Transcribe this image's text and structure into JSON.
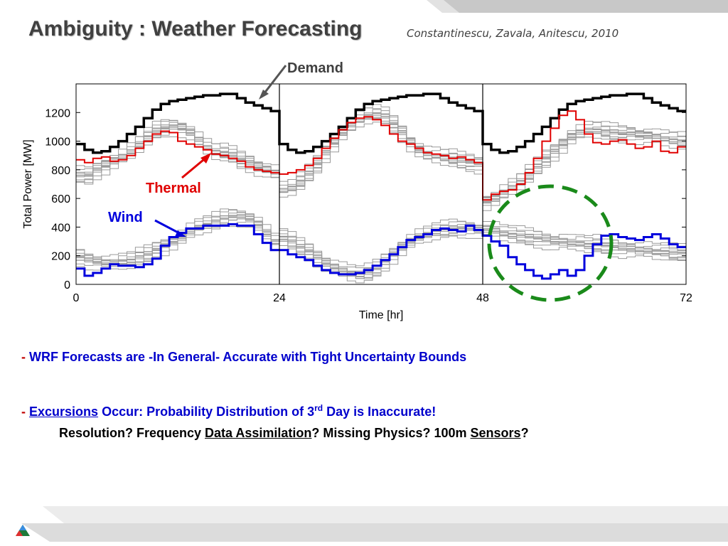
{
  "slide": {
    "title": "Ambiguity : Weather Forecasting",
    "citation": "Constantinescu, Zavala, Anitescu, 2010",
    "bullet1": {
      "dash": "-",
      "text": "WRF Forecasts are -In General- Accurate with Tight Uncertainty Bounds"
    },
    "bullet2": {
      "dash": "-",
      "link": "Excursions",
      "text_before_sup": "Occur: Probability Distribution of 3",
      "sup": "rd",
      "text_after_sup": "Day is Inaccurate!"
    },
    "bullet3": {
      "part1": "Resolution? Frequency",
      "link1": "Data Assimilation",
      "part2": "? Missing Physics? 100m",
      "link2": "Sensors",
      "part3": "?"
    }
  },
  "colors": {
    "demand": "#000000",
    "thermal": "#e00000",
    "wind": "#0000dd",
    "scenarios": "#9a9a9a",
    "circle": "#1a8a1a",
    "title": "#404040",
    "bullet": "#0000cc"
  },
  "chart_data": {
    "type": "line",
    "xlabel": "Time [hr]",
    "ylabel": "Total Power [MW]",
    "xlim": [
      0,
      72
    ],
    "ylim": [
      0,
      1400
    ],
    "xticks": [
      0,
      24,
      48,
      72
    ],
    "yticks": [
      0,
      200,
      400,
      600,
      800,
      1000,
      1200
    ],
    "annotations": [
      "Demand",
      "Thermal",
      "Wind"
    ],
    "day_separators": [
      24,
      48
    ],
    "series": [
      {
        "name": "Demand",
        "x": [
          0,
          1,
          2,
          3,
          4,
          5,
          6,
          7,
          8,
          9,
          10,
          11,
          12,
          13,
          14,
          15,
          16,
          17,
          18,
          19,
          20,
          21,
          22,
          23
        ],
        "values": [
          980,
          940,
          920,
          930,
          960,
          1000,
          1050,
          1100,
          1160,
          1220,
          1260,
          1280,
          1290,
          1300,
          1310,
          1320,
          1320,
          1330,
          1330,
          1300,
          1270,
          1250,
          1230,
          1210
        ],
        "repeat_days": 3
      },
      {
        "name": "Thermal",
        "x": [
          0,
          1,
          2,
          3,
          4,
          5,
          6,
          7,
          8,
          9,
          10,
          11,
          12,
          13,
          14,
          15,
          16,
          17,
          18,
          19,
          20,
          21,
          22,
          23,
          24,
          25,
          26,
          27,
          28,
          29,
          30,
          31,
          32,
          33,
          34,
          35,
          36,
          37,
          38,
          39,
          40,
          41,
          42,
          43,
          44,
          45,
          46,
          47,
          48,
          49,
          50,
          51,
          52,
          53,
          54,
          55,
          56,
          57,
          58,
          59,
          60,
          61,
          62,
          63,
          64,
          65,
          66,
          67,
          68,
          69,
          70,
          71
        ],
        "values": [
          870,
          850,
          880,
          890,
          860,
          870,
          900,
          950,
          1000,
          1050,
          1070,
          1060,
          1000,
          980,
          960,
          940,
          910,
          900,
          880,
          860,
          820,
          800,
          790,
          780,
          770,
          780,
          800,
          830,
          880,
          950,
          1020,
          1080,
          1130,
          1160,
          1170,
          1150,
          1110,
          1050,
          1000,
          980,
          950,
          920,
          910,
          900,
          880,
          890,
          870,
          850,
          590,
          630,
          650,
          660,
          700,
          780,
          880,
          1000,
          1090,
          1180,
          1210,
          1150,
          1050,
          990,
          980,
          1000,
          1010,
          980,
          950,
          960,
          1000,
          930,
          920,
          960
        ]
      },
      {
        "name": "Wind",
        "x": [
          0,
          1,
          2,
          3,
          4,
          5,
          6,
          7,
          8,
          9,
          10,
          11,
          12,
          13,
          14,
          15,
          16,
          17,
          18,
          19,
          20,
          21,
          22,
          23,
          24,
          25,
          26,
          27,
          28,
          29,
          30,
          31,
          32,
          33,
          34,
          35,
          36,
          37,
          38,
          39,
          40,
          41,
          42,
          43,
          44,
          45,
          46,
          47,
          48,
          49,
          50,
          51,
          52,
          53,
          54,
          55,
          56,
          57,
          58,
          59,
          60,
          61,
          62,
          63,
          64,
          65,
          66,
          67,
          68,
          69,
          70,
          71
        ],
        "values": [
          110,
          60,
          80,
          110,
          140,
          130,
          130,
          120,
          140,
          180,
          270,
          330,
          360,
          390,
          390,
          410,
          410,
          410,
          420,
          410,
          410,
          350,
          290,
          240,
          240,
          210,
          190,
          170,
          130,
          100,
          80,
          70,
          70,
          80,
          100,
          130,
          170,
          210,
          260,
          310,
          330,
          350,
          380,
          390,
          380,
          370,
          410,
          380,
          340,
          300,
          270,
          190,
          140,
          100,
          60,
          40,
          70,
          100,
          60,
          100,
          200,
          280,
          340,
          350,
          330,
          320,
          310,
          330,
          350,
          320,
          280,
          260
        ]
      },
      {
        "name": "Thermal scenarios",
        "x": [
          0,
          1,
          2,
          3,
          4,
          5,
          6,
          7,
          8,
          9,
          10,
          11,
          12,
          13,
          14,
          15,
          16,
          17,
          18,
          19,
          20,
          21,
          22,
          23,
          24,
          25,
          26,
          27,
          28,
          29,
          30,
          31,
          32,
          33,
          34,
          35,
          36,
          37,
          38,
          39,
          40,
          41,
          42,
          43,
          44,
          45,
          46,
          47,
          48,
          49,
          50,
          51,
          52,
          53,
          54,
          55,
          56,
          57,
          58,
          59,
          60,
          61,
          62,
          63,
          64,
          65,
          66,
          67,
          68,
          69,
          70,
          71
        ],
        "values": [
          760,
          760,
          800,
          830,
          860,
          890,
          930,
          980,
          1030,
          1070,
          1090,
          1100,
          1090,
          1060,
          1010,
          960,
          930,
          920,
          900,
          870,
          850,
          820,
          800,
          780,
          660,
          680,
          720,
          770,
          840,
          920,
          990,
          1060,
          1110,
          1150,
          1180,
          1190,
          1170,
          1120,
          1060,
          990,
          940,
          910,
          900,
          890,
          880,
          860,
          850,
          840,
          580,
          600,
          640,
          680,
          720,
          770,
          820,
          880,
          930,
          980,
          1030,
          1060,
          1080,
          1080,
          1070,
          1060,
          1050,
          1050,
          1040,
          1040,
          1030,
          1020,
          1010,
          1000
        ],
        "ensemble_spread": 70
      },
      {
        "name": "Wind scenarios",
        "x": [
          0,
          1,
          2,
          3,
          4,
          5,
          6,
          7,
          8,
          9,
          10,
          11,
          12,
          13,
          14,
          15,
          16,
          17,
          18,
          19,
          20,
          21,
          22,
          23,
          24,
          25,
          26,
          27,
          28,
          29,
          30,
          31,
          32,
          33,
          34,
          35,
          36,
          37,
          38,
          39,
          40,
          41,
          42,
          43,
          44,
          45,
          46,
          47,
          48,
          49,
          50,
          51,
          52,
          53,
          54,
          55,
          56,
          57,
          58,
          59,
          60,
          61,
          62,
          63,
          64,
          65,
          66,
          67,
          68,
          69,
          70,
          71
        ],
        "values": [
          190,
          170,
          160,
          150,
          150,
          160,
          170,
          190,
          210,
          240,
          270,
          300,
          330,
          370,
          400,
          420,
          440,
          460,
          470,
          470,
          460,
          420,
          360,
          300,
          330,
          300,
          260,
          230,
          190,
          150,
          120,
          100,
          80,
          70,
          80,
          110,
          160,
          210,
          260,
          300,
          330,
          350,
          370,
          380,
          390,
          390,
          390,
          380,
          390,
          380,
          360,
          350,
          340,
          330,
          320,
          310,
          300,
          300,
          290,
          290,
          280,
          280,
          270,
          260,
          250,
          250,
          240,
          240,
          230,
          230,
          220,
          220
        ],
        "ensemble_spread": 70
      }
    ]
  }
}
